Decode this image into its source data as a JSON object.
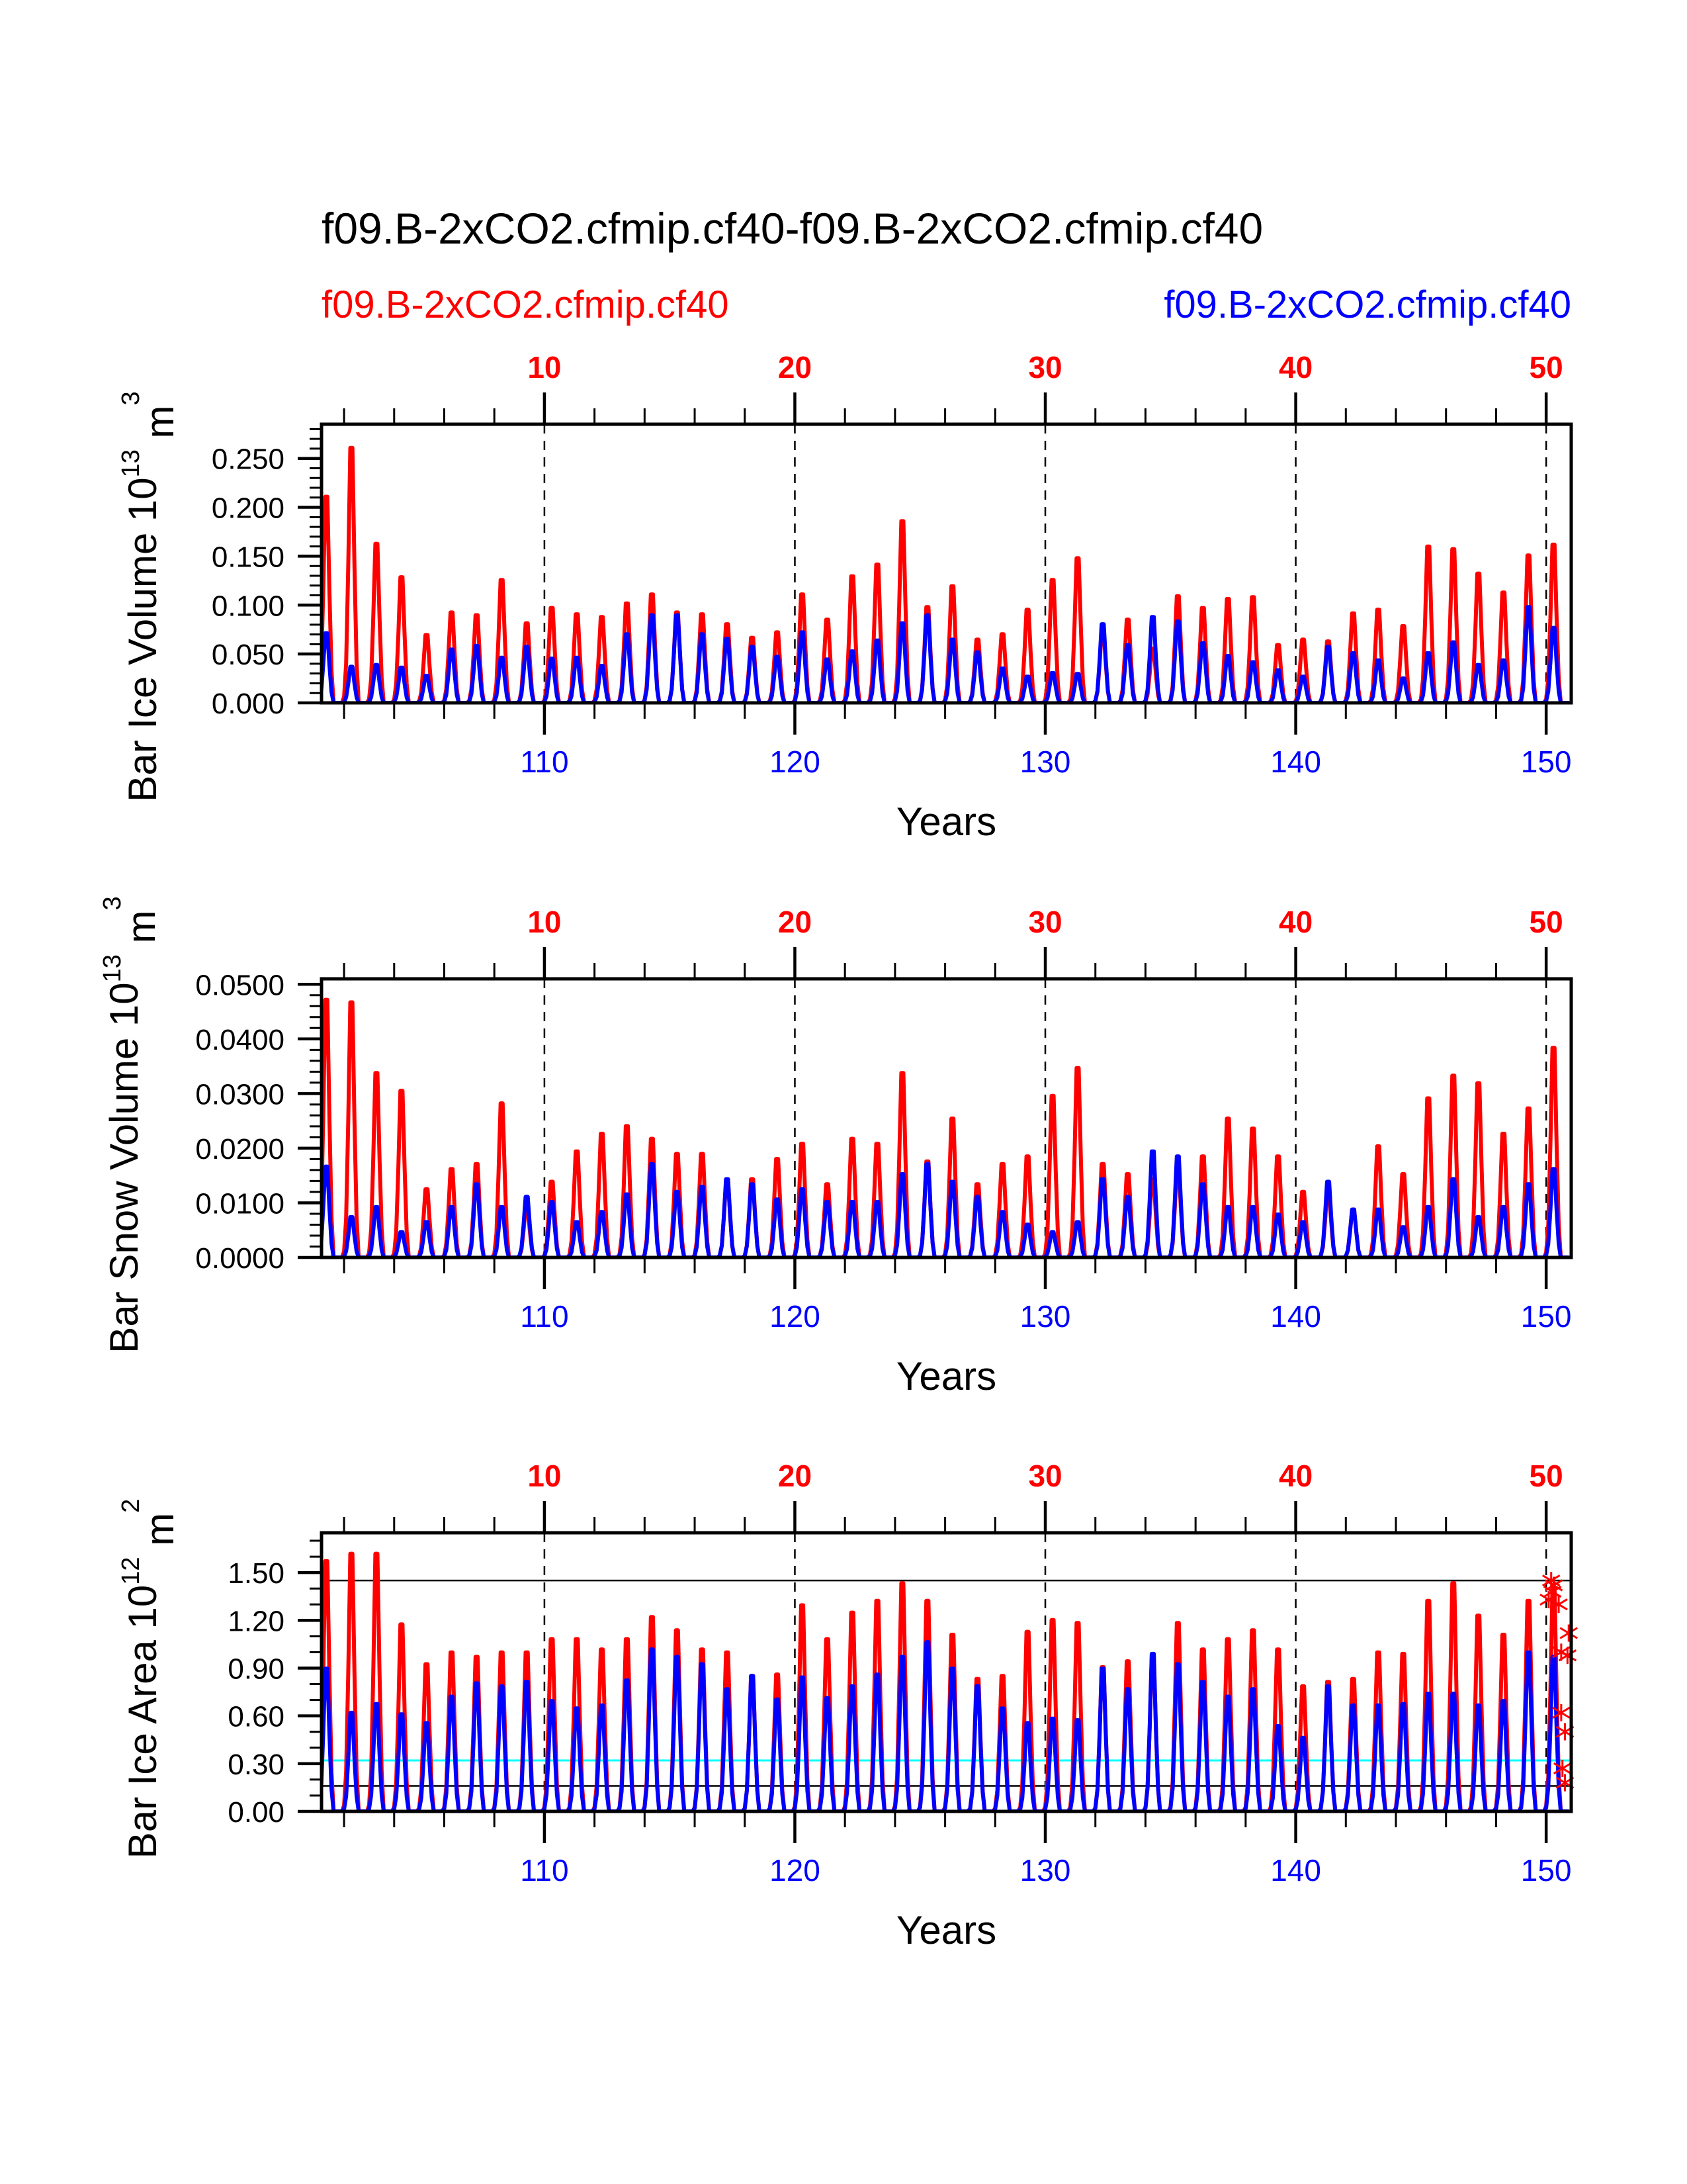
{
  "figure": {
    "title": "f09.B-2xCO2.cfmip.cf40-f09.B-2xCO2.cfmip.cf40",
    "legend_left": "f09.B-2xCO2.cfmip.cf40",
    "legend_right": "f09.B-2xCO2.cfmip.cf40",
    "colors": {
      "case1": "#ff0000",
      "case2": "#0000ff",
      "reference_line": "#000000",
      "cyan_line": "#00ffff"
    }
  },
  "chart_data": [
    {
      "type": "line",
      "id": "ice_volume",
      "title": "",
      "ylabel": "Bar Ice Volume 10^13 m^3",
      "ylabel_main": "Bar Ice Volume 10",
      "ylabel_exp": "13",
      "ylabel_unit": " m",
      "ylabel_unit_exp": "3",
      "xlabel": "Years",
      "xlim": [
        101.1,
        151.0
      ],
      "ylim": [
        0.0,
        0.285
      ],
      "yticks": [
        0.0,
        0.05,
        0.1,
        0.15,
        0.2,
        0.25
      ],
      "ytick_labels": [
        "0.000",
        "0.050",
        "0.100",
        "0.150",
        "0.200",
        "0.250"
      ],
      "yminor_step": 0.01,
      "xticks_bottom": [
        110,
        120,
        130,
        140,
        150
      ],
      "xtick_labels_bottom": [
        "110",
        "120",
        "130",
        "140",
        "150"
      ],
      "xticks_top": [
        10,
        20,
        30,
        40,
        50
      ],
      "xtick_labels_top": [
        "10",
        "20",
        "30",
        "40",
        "50"
      ],
      "top_axis_offset": 100,
      "grid": "dashed vertical lines at decades",
      "sampling": "monthly, annual maxima listed per year 101-150",
      "series": [
        {
          "name": "f09.B-2xCO2.cfmip.cf40 (red)",
          "color": "#ff0000",
          "annual_peaks": [
            0.228,
            0.282,
            0.176,
            0.139,
            0.075,
            0.1,
            0.097,
            0.136,
            0.088,
            0.105,
            0.098,
            0.095,
            0.11,
            0.12,
            0.1,
            0.098,
            0.087,
            0.072,
            0.078,
            0.12,
            0.092,
            0.14,
            0.153,
            0.201,
            0.106,
            0.129,
            0.07,
            0.076,
            0.103,
            0.136,
            0.16,
            0.08,
            0.092,
            0.06,
            0.118,
            0.105,
            0.115,
            0.117,
            0.064,
            0.07,
            0.068,
            0.099,
            0.103,
            0.085,
            0.173,
            0.17,
            0.143,
            0.122,
            0.163,
            0.175
          ]
        },
        {
          "name": "f09.B-2xCO2.cfmip.cf40 (blue)",
          "color": "#0000ff",
          "annual_peaks": [
            0.077,
            0.04,
            0.042,
            0.039,
            0.03,
            0.059,
            0.063,
            0.05,
            0.062,
            0.049,
            0.05,
            0.041,
            0.076,
            0.097,
            0.097,
            0.076,
            0.071,
            0.062,
            0.051,
            0.078,
            0.048,
            0.057,
            0.069,
            0.088,
            0.097,
            0.07,
            0.056,
            0.038,
            0.029,
            0.033,
            0.032,
            0.087,
            0.064,
            0.095,
            0.09,
            0.066,
            0.052,
            0.045,
            0.036,
            0.029,
            0.062,
            0.055,
            0.047,
            0.027,
            0.055,
            0.067,
            0.042,
            0.047,
            0.106,
            0.083
          ]
        }
      ],
      "hlines": []
    },
    {
      "type": "line",
      "id": "snow_volume",
      "title": "",
      "ylabel": "Bar Snow Volume 10^13 m^3",
      "ylabel_main": "Bar Snow Volume 10",
      "ylabel_exp": "13",
      "ylabel_unit": " m",
      "ylabel_unit_exp": "3",
      "xlabel": "Years",
      "xlim": [
        101.1,
        151.0
      ],
      "ylim": [
        0.0,
        0.051
      ],
      "yticks": [
        0.0,
        0.01,
        0.02,
        0.03,
        0.04,
        0.05
      ],
      "ytick_labels": [
        "0.0000",
        "0.0100",
        "0.0200",
        "0.0300",
        "0.0400",
        "0.0500"
      ],
      "yminor_step": 0.002,
      "xticks_bottom": [
        110,
        120,
        130,
        140,
        150
      ],
      "xtick_labels_bottom": [
        "110",
        "120",
        "130",
        "140",
        "150"
      ],
      "xticks_top": [
        10,
        20,
        30,
        40,
        50
      ],
      "xtick_labels_top": [
        "10",
        "20",
        "30",
        "40",
        "50"
      ],
      "top_axis_offset": 100,
      "grid": "dashed vertical lines at decades",
      "sampling": "monthly, annual maxima listed per year 101-150",
      "series": [
        {
          "name": "f09.B-2xCO2.cfmip.cf40 (red)",
          "color": "#ff0000",
          "annual_peaks": [
            0.051,
            0.0505,
            0.0365,
            0.033,
            0.0135,
            0.0175,
            0.0185,
            0.0305,
            0.01,
            0.015,
            0.021,
            0.0245,
            0.026,
            0.0235,
            0.0205,
            0.0205,
            0.015,
            0.0155,
            0.0195,
            0.0225,
            0.0145,
            0.0235,
            0.0225,
            0.0365,
            0.019,
            0.0275,
            0.0145,
            0.0185,
            0.02,
            0.032,
            0.0375,
            0.0185,
            0.0165,
            0.0155,
            0.0175,
            0.02,
            0.0275,
            0.0255,
            0.02,
            0.013,
            0.013,
            0.0095,
            0.022,
            0.0165,
            0.0315,
            0.036,
            0.0345,
            0.0245,
            0.0295,
            0.0415
          ]
        },
        {
          "name": "f09.B-2xCO2.cfmip.cf40 (blue)",
          "color": "#0000ff",
          "annual_peaks": [
            0.018,
            0.008,
            0.01,
            0.005,
            0.007,
            0.01,
            0.0145,
            0.01,
            0.012,
            0.011,
            0.007,
            0.009,
            0.0125,
            0.0185,
            0.013,
            0.014,
            0.0155,
            0.0145,
            0.0115,
            0.0135,
            0.011,
            0.011,
            0.011,
            0.0165,
            0.0185,
            0.015,
            0.012,
            0.009,
            0.0065,
            0.005,
            0.007,
            0.0155,
            0.012,
            0.021,
            0.02,
            0.0145,
            0.01,
            0.01,
            0.0085,
            0.007,
            0.015,
            0.0095,
            0.0095,
            0.006,
            0.01,
            0.0155,
            0.008,
            0.01,
            0.0145,
            0.0175
          ]
        }
      ],
      "hlines": []
    },
    {
      "type": "line",
      "id": "ice_area",
      "title": "",
      "ylabel": "Bar Ice Area 10^12 m^2",
      "ylabel_main": "Bar Ice Area 10",
      "ylabel_exp": "12",
      "ylabel_unit": " m",
      "ylabel_unit_exp": "2",
      "xlabel": "Years",
      "xlim": [
        101.1,
        151.0
      ],
      "ylim": [
        0.0,
        1.75
      ],
      "yticks": [
        0.0,
        0.3,
        0.6,
        0.9,
        1.2,
        1.5
      ],
      "ytick_labels": [
        "0.00",
        "0.30",
        "0.60",
        "0.90",
        "1.20",
        "1.50"
      ],
      "yminor_step": 0.1,
      "xticks_bottom": [
        110,
        120,
        130,
        140,
        150
      ],
      "xtick_labels_bottom": [
        "110",
        "120",
        "130",
        "140",
        "150"
      ],
      "xticks_top": [
        10,
        20,
        30,
        40,
        50
      ],
      "xtick_labels_top": [
        "10",
        "20",
        "30",
        "40",
        "50"
      ],
      "top_axis_offset": 100,
      "grid": "dashed vertical lines at decades",
      "sampling": "monthly, annual maxima listed per year 101-150",
      "series": [
        {
          "name": "f09.B-2xCO2.cfmip.cf40 (red)",
          "color": "#ff0000",
          "annual_peaks": [
            1.7,
            1.75,
            1.75,
            1.27,
            1.0,
            1.08,
            1.05,
            1.08,
            1.08,
            1.17,
            1.17,
            1.1,
            1.17,
            1.32,
            1.23,
            1.1,
            1.08,
            0.92,
            0.93,
            1.4,
            1.17,
            1.35,
            1.43,
            1.55,
            1.43,
            1.2,
            0.9,
            0.92,
            1.22,
            1.3,
            1.28,
            0.98,
            1.02,
            1.05,
            1.28,
            1.1,
            1.17,
            1.23,
            1.1,
            0.85,
            0.88,
            0.9,
            1.08,
            1.07,
            1.43,
            1.55,
            1.33,
            1.2,
            1.43,
            1.52
          ]
        },
        {
          "name": "f09.B-2xCO2.cfmip.cf40 (blue)",
          "color": "#0000ff",
          "annual_peaks": [
            0.97,
            0.67,
            0.73,
            0.66,
            0.6,
            0.78,
            0.87,
            0.85,
            0.88,
            0.75,
            0.7,
            0.72,
            0.89,
            1.1,
            1.05,
            1.0,
            0.83,
            0.92,
            0.76,
            0.91,
            0.77,
            0.85,
            0.93,
            1.05,
            1.15,
            0.97,
            0.85,
            0.7,
            0.6,
            0.63,
            0.62,
            0.97,
            0.83,
            1.07,
            1.0,
            0.88,
            0.78,
            0.83,
            0.58,
            0.5,
            0.85,
            0.72,
            0.72,
            0.73,
            0.8,
            0.8,
            0.72,
            0.75,
            1.08,
            1.05
          ]
        }
      ],
      "hlines": [
        {
          "label": "reference upper",
          "value": 1.45,
          "color": "#000000"
        },
        {
          "label": "reference lower",
          "value": 0.16,
          "color": "#000000"
        },
        {
          "label": "cyan reference",
          "value": 0.32,
          "color": "#00ffff"
        }
      ],
      "markers": {
        "symbol": "asterisk",
        "color": "#ff0000",
        "points": [
          [
            150.2,
            1.45
          ],
          [
            150.3,
            1.42
          ],
          [
            150.25,
            1.38
          ],
          [
            150.1,
            1.33
          ],
          [
            150.5,
            1.3
          ],
          [
            150.9,
            1.12
          ],
          [
            150.6,
            1.0
          ],
          [
            150.85,
            0.98
          ],
          [
            150.6,
            0.62
          ],
          [
            150.75,
            0.5
          ],
          [
            150.65,
            0.27
          ],
          [
            150.75,
            0.18
          ]
        ]
      }
    }
  ]
}
